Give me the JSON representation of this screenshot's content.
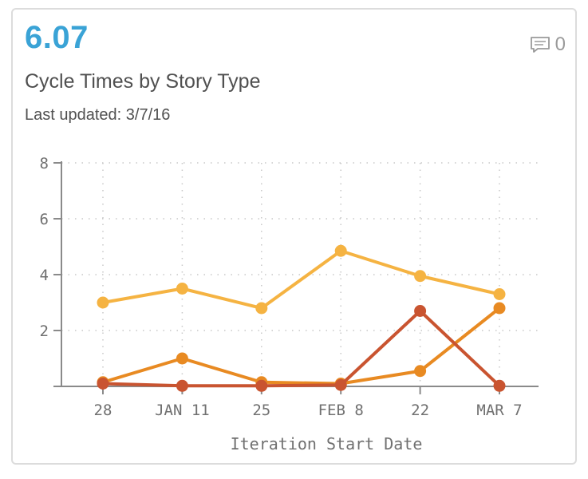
{
  "card": {
    "metric_value": "6.07",
    "title": "Cycle Times by Story Type",
    "last_updated": "Last updated: 3/7/16",
    "comment_icon": "comment-icon",
    "comment_count": "0"
  },
  "colors": {
    "metric": "#3aa3d6",
    "series_light": "#f5b342",
    "series_mid": "#e88a22",
    "series_dark": "#c95430",
    "axis": "#8a8a8a",
    "grid": "#c8c8c8"
  },
  "chart_data": {
    "type": "line",
    "categories": [
      "28",
      "JAN 11",
      "25",
      "FEB 8",
      "22",
      "MAR 7"
    ],
    "xlabel": "Iteration Start Date",
    "ylabel": "",
    "ylim": [
      0,
      8
    ],
    "yticks": [
      2,
      4,
      6,
      8
    ],
    "grid": true,
    "series": [
      {
        "values": [
          3.0,
          3.5,
          2.8,
          4.85,
          3.95,
          3.3
        ],
        "color": "#f5b342"
      },
      {
        "values": [
          0.15,
          1.0,
          0.15,
          0.1,
          0.55,
          2.8
        ],
        "color": "#e88a22"
      },
      {
        "values": [
          0.1,
          0.02,
          0.02,
          0.05,
          2.7,
          0.02
        ],
        "color": "#c95430"
      }
    ]
  }
}
